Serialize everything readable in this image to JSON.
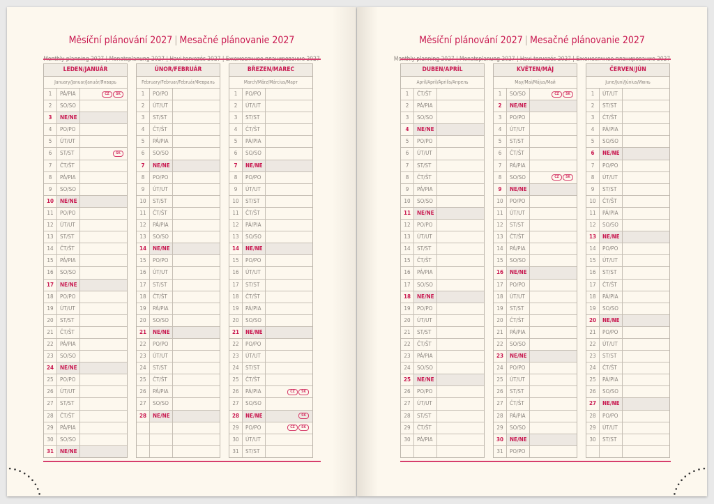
{
  "left_page": {
    "title_cz": "Měsíční plánování 2027",
    "title_sk": "Mesačné plánovanie 2027",
    "subtitle": "Monthly planning 2027 | Monatsplanung 2027 | Havi tervezés 2027 | Ежемесячное планирование 2027",
    "months": [
      {
        "name": "LEDEN/JANUÁR",
        "translations": "January/Januar/Január/Январь",
        "days": 31,
        "first_weekday": 4,
        "holidays": {
          "1": [
            "CZ",
            "SK"
          ],
          "6": [
            "SK"
          ]
        }
      },
      {
        "name": "ÚNOR/FEBRUÁR",
        "translations": "February/Februar/Február/Февраль",
        "days": 28,
        "first_weekday": 0,
        "holidays": {}
      },
      {
        "name": "BŘEZEN/MAREC",
        "translations": "March/März/Március/Март",
        "days": 31,
        "first_weekday": 0,
        "holidays": {
          "26": [
            "CZ",
            "SK"
          ],
          "28": [
            "SK"
          ],
          "29": [
            "CZ",
            "SK"
          ]
        }
      }
    ]
  },
  "right_page": {
    "title_cz": "Měsíční plánování 2027",
    "title_sk": "Mesačné plánovanie 2027",
    "subtitle": "Monthly planning 2027 | Monatsplanung 2027 | Havi tervezés 2027 | Ежемесячное планирование 2027",
    "months": [
      {
        "name": "DUBEN/APRÍL",
        "translations": "April/April/Április/Апрель",
        "days": 30,
        "first_weekday": 3,
        "holidays": {}
      },
      {
        "name": "KVĚTEN/MÁJ",
        "translations": "May/Mai/Május/Май",
        "days": 31,
        "first_weekday": 5,
        "holidays": {
          "1": [
            "CZ",
            "SK"
          ],
          "8": [
            "CZ",
            "SK"
          ]
        }
      },
      {
        "name": "ČERVEN/JÚN",
        "translations": "June/Juni/Június/Июнь",
        "days": 30,
        "first_weekday": 1,
        "holidays": {}
      }
    ]
  },
  "weekdays": [
    "PO/PO",
    "ÚT/UT",
    "ST/ST",
    "ČT/ŠT",
    "PÁ/PIA",
    "SO/SO",
    "NE/NE"
  ],
  "rows_per_table": 31,
  "colors": {
    "accent": "#c8174f",
    "rule": "#d63e6c",
    "paper": "#fdf8ee",
    "sunday_bg": "#ede8e2",
    "text": "#8b857f"
  }
}
